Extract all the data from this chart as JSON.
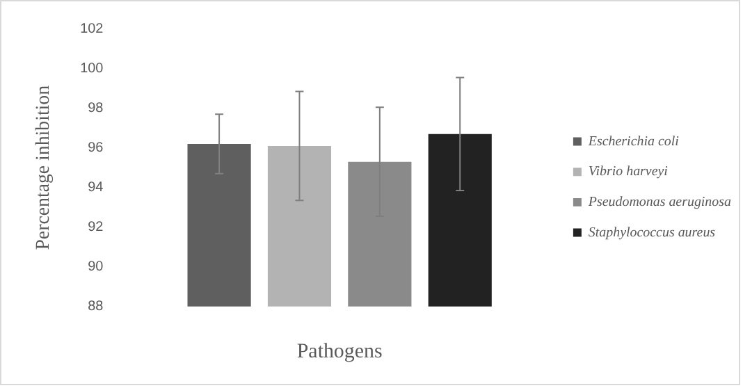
{
  "chart_data": {
    "type": "bar",
    "ylabel": "Percentage inhibition",
    "xlabel": "Pathogens",
    "categories": [
      null
    ],
    "ylim": [
      88,
      102
    ],
    "yticks": [
      88,
      90,
      92,
      94,
      96,
      98,
      100,
      102
    ],
    "grid": false,
    "legend": "right",
    "series": [
      {
        "name": "Escherichia coli",
        "color": "#5f5f5f",
        "values": [
          96.2
        ],
        "errors": [
          1.5
        ]
      },
      {
        "name": "Vibrio harveyi",
        "color": "#b3b3b3",
        "values": [
          96.1
        ],
        "errors": [
          2.75
        ]
      },
      {
        "name": "Pseudomonas aeruginosa",
        "color": "#8a8a8a",
        "values": [
          95.3
        ],
        "errors": [
          2.75
        ]
      },
      {
        "name": "Staphylococcus aureus",
        "color": "#222222",
        "values": [
          96.7
        ],
        "errors": [
          2.85
        ]
      }
    ]
  }
}
